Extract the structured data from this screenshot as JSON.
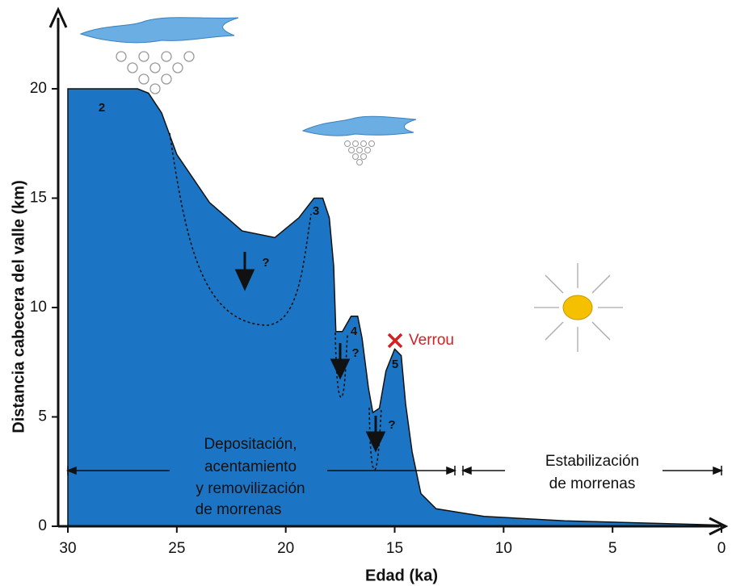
{
  "chart_data": {
    "type": "area",
    "x_label": "Edad (ka)",
    "y_label": "Distancia cabecera del valle (km)",
    "x": [
      30,
      26.8,
      26.3,
      25.7,
      25.0,
      23.5,
      22.0,
      20.5,
      19.4,
      18.7,
      18.3,
      18.0,
      17.8,
      17.7,
      17.4,
      17.0,
      16.7,
      16.5,
      16.2,
      16.0,
      15.7,
      15.4,
      15.0,
      14.7,
      14.5,
      14.2,
      13.8,
      13.1,
      10.9,
      7.2,
      0
    ],
    "values": [
      20,
      20,
      19.8,
      18.9,
      17.0,
      14.8,
      13.5,
      13.2,
      14.1,
      15.0,
      15.0,
      14.1,
      11.9,
      8.9,
      8.9,
      9.6,
      9.6,
      8.6,
      6.3,
      5.2,
      5.4,
      7.1,
      8.1,
      7.8,
      5.6,
      3.4,
      1.5,
      0.8,
      0.45,
      0.25,
      0.05
    ],
    "color": "#1b75c4",
    "xlim": [
      30,
      0
    ],
    "xticks": [
      30,
      25,
      20,
      15,
      10,
      5,
      0
    ],
    "ylim": [
      0,
      20
    ],
    "yticks": [
      0,
      5,
      10,
      15,
      20
    ],
    "annotations": {
      "peaks": [
        "2",
        "3",
        "4",
        "5"
      ],
      "questions": [
        "?",
        "?",
        "?",
        "?"
      ],
      "verrou": "Verrou",
      "phase1": [
        "Depositación,",
        "acentamiento",
        "y removilización",
        "de morrenas"
      ],
      "phase2": [
        "Estabilización",
        "de morrenas"
      ]
    }
  }
}
